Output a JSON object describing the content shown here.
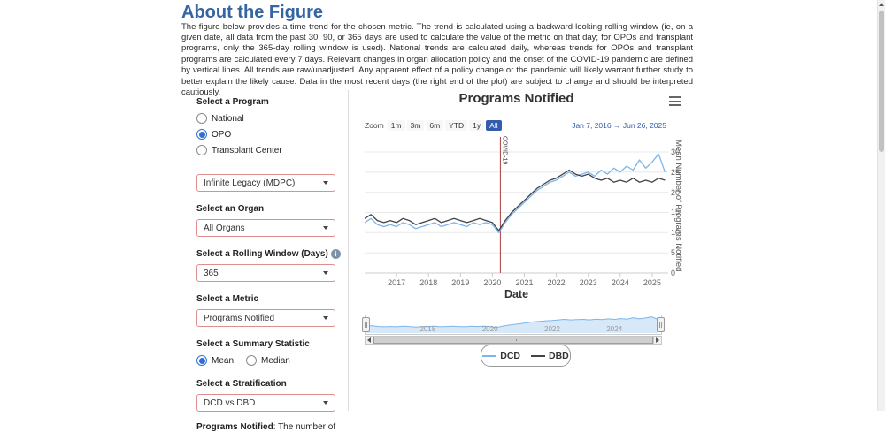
{
  "colors": {
    "heading": "#3465a4",
    "radio": "#2f6fd6",
    "selectborder": "#df8e8e",
    "accent": "#335cad",
    "covidline": "#aa3c3c"
  },
  "page": {
    "heading": "About the Figure",
    "description": "The figure below provides a time trend for the chosen metric. The trend is calculated using a backward-looking rolling window (ie, on a given date, all data from the past 30, 90, or 365 days are used to calculate the value of the metric on that day; for OPOs and transplant programs, only the 365-day rolling window is used). National trends are calculated daily, whereas trends for OPOs and transplant programs are calculated every 7 days. Relevant changes in organ allocation policy and the onset of the COVID-19 pandemic are defined by vertical lines. All trends are raw/unadjusted. Any apparent effect of a policy change or the pandemic will likely warrant further study to better explain the likely cause. Data in the most recent days (the right end of the plot) are subject to change and should be interpreted cautiously."
  },
  "form": {
    "program_label": "Select a Program",
    "program_options": [
      {
        "label": "National",
        "selected": false
      },
      {
        "label": "OPO",
        "selected": true
      },
      {
        "label": "Transplant Center",
        "selected": false
      }
    ],
    "program_value": "Infinite Legacy (MDPC)",
    "organ_label": "Select an Organ",
    "organ_value": "All Organs",
    "window_label": "Select a Rolling Window (Days)",
    "window_value": "365",
    "metric_label": "Select a Metric",
    "metric_value": "Programs Notified",
    "stat_label": "Select a Summary Statistic",
    "stat_options": [
      {
        "label": "Mean",
        "selected": true
      },
      {
        "label": "Median",
        "selected": false
      }
    ],
    "strat_label": "Select a Stratification",
    "strat_value": "DCD vs DBD",
    "footnote_term": "Programs Notified",
    "footnote_rest": ": The number of"
  },
  "chart": {
    "title": "Programs Notified",
    "zoom_label": "Zoom",
    "zoom_buttons": [
      "1m",
      "3m",
      "6m",
      "YTD",
      "1y",
      "All"
    ],
    "zoom_selected": "All",
    "range_text": "Jan 7, 2016  →  Jun 26, 2025",
    "xaxis_title": "Date",
    "yaxis_title": "Mean Number of Programs Notified"
  },
  "chart_data": {
    "type": "line",
    "title": "Programs Notified",
    "xlabel": "Date",
    "ylabel": "Mean Number of Programs Notified",
    "ylim": [
      0,
      30
    ],
    "y_ticks": [
      0,
      5,
      10,
      15,
      20,
      25,
      30
    ],
    "x_ticks": [
      2017,
      2018,
      2019,
      2020,
      2021,
      2022,
      2023,
      2024,
      2025
    ],
    "grid": true,
    "legend_position": "bottom",
    "annotations": [
      {
        "label": "COVID-19",
        "x": 2020.25
      }
    ],
    "x": [
      2016.0,
      2016.2,
      2016.4,
      2016.6,
      2016.8,
      2017.0,
      2017.2,
      2017.4,
      2017.6,
      2017.8,
      2018.0,
      2018.2,
      2018.4,
      2018.6,
      2018.8,
      2019.0,
      2019.2,
      2019.4,
      2019.6,
      2019.8,
      2020.0,
      2020.2,
      2020.4,
      2020.6,
      2020.8,
      2021.0,
      2021.2,
      2021.4,
      2021.6,
      2021.8,
      2022.0,
      2022.2,
      2022.4,
      2022.6,
      2022.8,
      2023.0,
      2023.2,
      2023.4,
      2023.6,
      2023.8,
      2024.0,
      2024.2,
      2024.4,
      2024.6,
      2024.8,
      2025.0,
      2025.2,
      2025.4
    ],
    "series": [
      {
        "name": "DCD",
        "color": "#7cb5ec",
        "values": [
          12.5,
          13.5,
          12.0,
          11.5,
          12.0,
          11.5,
          12.5,
          12.0,
          11.0,
          11.5,
          12.0,
          12.5,
          11.5,
          12.0,
          12.5,
          12.0,
          11.5,
          12.5,
          12.0,
          12.5,
          12.0,
          10.0,
          12.5,
          14.5,
          16.0,
          17.5,
          19.0,
          20.5,
          21.5,
          22.5,
          23.0,
          24.0,
          25.0,
          24.0,
          24.5,
          25.0,
          24.0,
          25.5,
          24.5,
          26.0,
          25.0,
          26.5,
          25.5,
          28.0,
          26.0,
          27.5,
          29.5,
          25.0
        ]
      },
      {
        "name": "DBD",
        "color": "#434348",
        "values": [
          13.5,
          14.5,
          13.0,
          12.5,
          13.0,
          12.5,
          13.5,
          13.0,
          12.0,
          12.5,
          13.0,
          13.5,
          12.5,
          13.0,
          13.5,
          13.0,
          12.5,
          13.0,
          13.5,
          13.0,
          12.5,
          10.5,
          13.0,
          15.0,
          16.5,
          18.0,
          19.5,
          21.0,
          22.0,
          23.0,
          23.5,
          24.5,
          25.5,
          24.5,
          24.0,
          24.5,
          23.5,
          23.0,
          23.5,
          22.5,
          23.0,
          22.5,
          23.5,
          22.5,
          23.0,
          22.5,
          23.5,
          23.0
        ]
      }
    ],
    "navigator_labels": [
      "2018",
      "2020",
      "2022",
      "2024"
    ]
  }
}
